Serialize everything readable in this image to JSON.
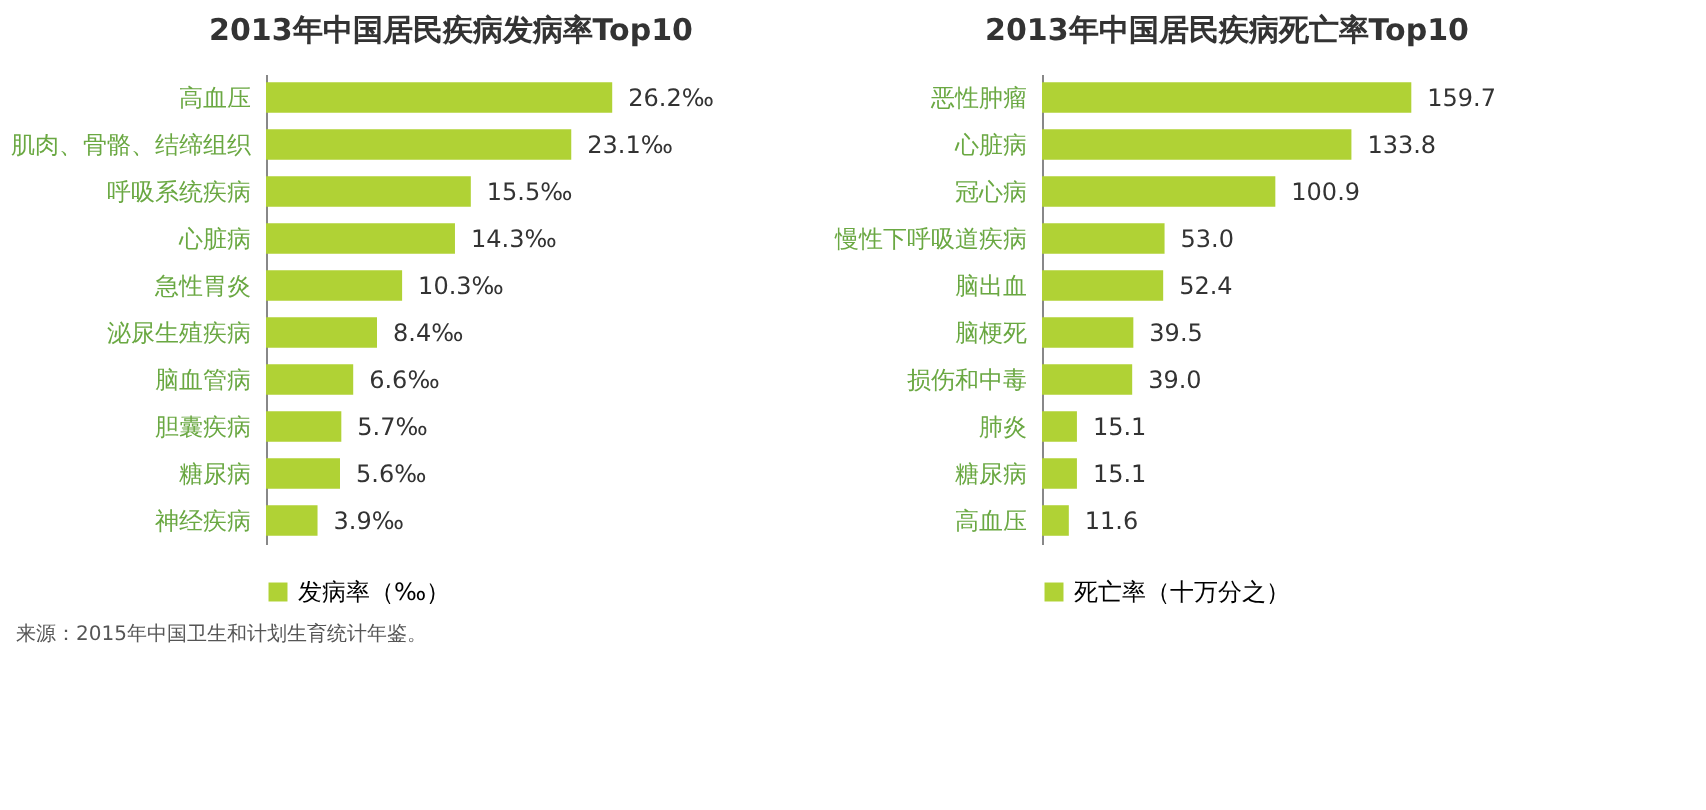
{
  "chart_data": [
    {
      "type": "bar",
      "orientation": "horizontal",
      "title": "2013年中国居民疾病发病率Top10",
      "categories": [
        "高血压",
        "肌肉、骨骼、结缔组织",
        "呼吸系统疾病",
        "心脏病",
        "急性胃炎",
        "泌尿生殖疾病",
        "脑血管病",
        "胆囊疾病",
        "糖尿病",
        "神经疾病"
      ],
      "series": [
        {
          "name": "发病率（‰）",
          "color": "#b0d235",
          "values": [
            26.2,
            23.1,
            15.5,
            14.3,
            10.3,
            8.4,
            6.6,
            5.7,
            5.6,
            3.9
          ],
          "value_labels": [
            "26.2‰",
            "23.1‰",
            "15.5‰",
            "14.3‰",
            "10.3‰",
            "8.4‰",
            "6.6‰",
            "5.7‰",
            "5.6‰",
            "3.9‰"
          ]
        }
      ],
      "legend": "bottom",
      "grid": false,
      "tick_labels": "y",
      "annotations": [
        "来源：2015年中国卫生和计划生育统计年鉴。"
      ]
    },
    {
      "type": "bar",
      "orientation": "horizontal",
      "title": "2013年中国居民疾病死亡率Top10",
      "categories": [
        "恶性肿瘤",
        "心脏病",
        "冠心病",
        "慢性下呼吸道疾病",
        "脑出血",
        "脑梗死",
        "损伤和中毒",
        "肺炎",
        "糖尿病",
        "高血压"
      ],
      "series": [
        {
          "name": "死亡率（十万分之）",
          "color": "#b0d235",
          "values": [
            159.7,
            133.8,
            100.9,
            53.0,
            52.4,
            39.5,
            39.0,
            15.1,
            15.1,
            11.6
          ],
          "value_labels": [
            "159.7",
            "133.8",
            "100.9",
            "53.0",
            "52.4",
            "39.5",
            "39.0",
            "15.1",
            "15.1",
            "11.6"
          ]
        }
      ],
      "legend": "bottom",
      "grid": false,
      "tick_labels": "y"
    }
  ]
}
